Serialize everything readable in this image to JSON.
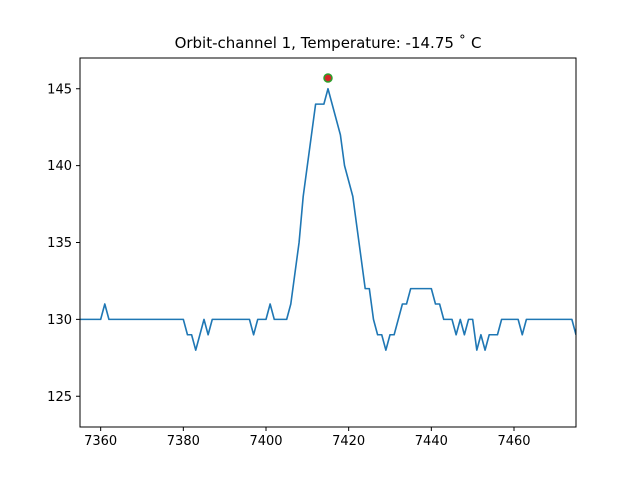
{
  "chart_data": {
    "type": "line",
    "title": "Orbit-channel 1, Temperature: -14.75  ˚ C",
    "xlabel": "",
    "ylabel": "",
    "xlim": [
      7355,
      7475
    ],
    "ylim": [
      123,
      147
    ],
    "xticks": [
      7360,
      7380,
      7400,
      7420,
      7440,
      7460
    ],
    "yticks": [
      125,
      130,
      135,
      140,
      145
    ],
    "grid": false,
    "series": [
      {
        "color": "#1f77b4",
        "x": [
          7355,
          7356,
          7357,
          7358,
          7359,
          7360,
          7361,
          7362,
          7363,
          7364,
          7365,
          7366,
          7367,
          7368,
          7369,
          7370,
          7371,
          7372,
          7373,
          7374,
          7375,
          7376,
          7377,
          7378,
          7379,
          7380,
          7381,
          7382,
          7383,
          7384,
          7385,
          7386,
          7387,
          7388,
          7389,
          7390,
          7391,
          7392,
          7393,
          7394,
          7395,
          7396,
          7397,
          7398,
          7399,
          7400,
          7401,
          7402,
          7403,
          7404,
          7405,
          7406,
          7407,
          7408,
          7409,
          7410,
          7411,
          7412,
          7413,
          7414,
          7415,
          7416,
          7417,
          7418,
          7419,
          7420,
          7421,
          7422,
          7423,
          7424,
          7425,
          7426,
          7427,
          7428,
          7429,
          7430,
          7431,
          7432,
          7433,
          7434,
          7435,
          7436,
          7437,
          7438,
          7439,
          7440,
          7441,
          7442,
          7443,
          7444,
          7445,
          7446,
          7447,
          7448,
          7449,
          7450,
          7451,
          7452,
          7453,
          7454,
          7455,
          7456,
          7457,
          7458,
          7459,
          7460,
          7461,
          7462,
          7463,
          7464,
          7465,
          7466,
          7467,
          7468,
          7469,
          7470,
          7471,
          7472,
          7473,
          7474,
          7475
        ],
        "y": [
          130,
          130,
          130,
          130,
          130,
          130,
          131,
          130,
          130,
          130,
          130,
          130,
          130,
          130,
          130,
          130,
          130,
          130,
          130,
          130,
          130,
          130,
          130,
          130,
          130,
          130,
          129,
          129,
          128,
          129,
          130,
          129,
          130,
          130,
          130,
          130,
          130,
          130,
          130,
          130,
          130,
          130,
          129,
          130,
          130,
          130,
          131,
          130,
          130,
          130,
          130,
          131,
          133,
          135,
          138,
          140,
          142,
          144,
          144,
          144,
          145,
          144,
          143,
          142,
          140,
          139,
          138,
          136,
          134,
          132,
          132,
          130,
          129,
          129,
          128,
          129,
          129,
          130,
          131,
          131,
          132,
          132,
          132,
          132,
          132,
          132,
          131,
          131,
          130,
          130,
          130,
          129,
          130,
          129,
          130,
          130,
          128,
          129,
          128,
          129,
          129,
          129,
          130,
          130,
          130,
          130,
          130,
          129,
          130,
          130,
          130,
          130,
          130,
          130,
          130,
          130,
          130,
          130,
          130,
          130,
          129
        ]
      }
    ],
    "highlight_point": {
      "x": 7415,
      "y": 145.7,
      "fill": "#d62728",
      "edge": "#2ca02c"
    }
  }
}
